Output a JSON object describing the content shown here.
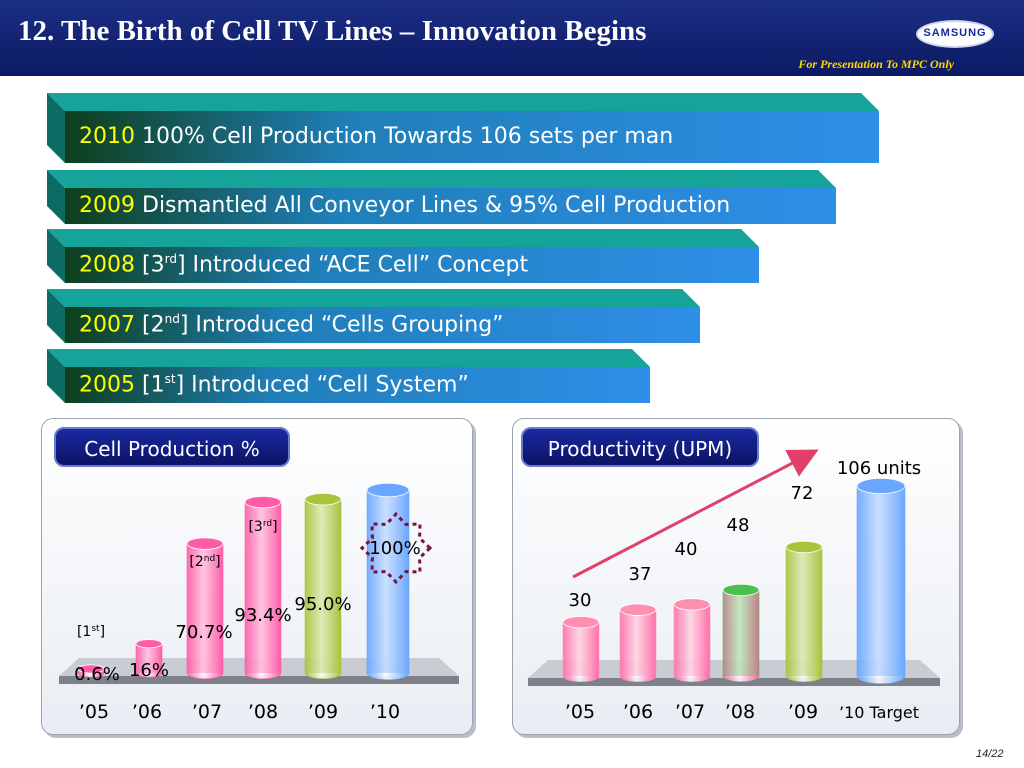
{
  "header": {
    "title": "12. The Birth of Cell TV Lines – Innovation Begins",
    "logo_text": "SAMSUNG",
    "note": "For Presentation To MPC Only"
  },
  "timeline": [
    {
      "year": "2010",
      "text": "100% Cell Production Towards 106 sets per man"
    },
    {
      "year": "2009",
      "text": "Dismantled All Conveyor Lines & 95% Cell Production"
    },
    {
      "year": "2008",
      "prefix": "[3",
      "sup": "rd",
      "text": "] Introduced “ACE Cell” Concept"
    },
    {
      "year": "2007",
      "prefix": "[2",
      "sup": "nd",
      "text": "] Introduced “Cells Grouping”"
    },
    {
      "year": "2005",
      "prefix": "[1",
      "sup": "st",
      "text": "] Introduced “Cell System”"
    }
  ],
  "colors": {
    "band_top": "#16a49a",
    "band_body": "#2f8ee8",
    "year_text": "#ffff00",
    "title_bg": "#0c1a63"
  },
  "chart_data": [
    {
      "type": "bar",
      "title": "Cell Production %",
      "categories": [
        "’05",
        "’06",
        "’07",
        "’08",
        "’09",
        "’10"
      ],
      "values": [
        0.6,
        16,
        70.7,
        93.4,
        95.0,
        100
      ],
      "data_labels": [
        "0.6%",
        "16%",
        "70.7%",
        "93.4%",
        "95.0%",
        "100%"
      ],
      "stage_tags": [
        {
          "category": "’05",
          "prefix": "[1",
          "sup": "st",
          "suffix": "]"
        },
        {
          "category": "’07",
          "prefix": "[2",
          "sup": "nd",
          "suffix": "]"
        },
        {
          "category": "’08",
          "prefix": "[3",
          "sup": "rd",
          "suffix": "]"
        }
      ],
      "bar_colors": [
        "#ff5ca8",
        "#ff5ca8",
        "#ff5ca8",
        "#ff5ca8",
        "#a7c43a",
        "#6aa6ff"
      ],
      "highlight": "100%",
      "ylim": [
        0,
        100
      ]
    },
    {
      "type": "bar",
      "title": "Productivity (UPM)",
      "categories": [
        "’05",
        "’06",
        "’07",
        "’08",
        "’09",
        "’10 Target"
      ],
      "values": [
        30,
        37,
        40,
        48,
        72,
        106
      ],
      "data_labels": [
        "30",
        "37",
        "40",
        "48",
        "72",
        "106 units"
      ],
      "bar_colors": [
        "#ff8fb1",
        "#ff8fb1",
        "#ff8fb1",
        "#4cc04c",
        "#a7c43a",
        "#6aa6ff"
      ],
      "trend_arrow": true,
      "ylim": [
        0,
        106
      ]
    }
  ],
  "footer": {
    "page": "14/22"
  }
}
